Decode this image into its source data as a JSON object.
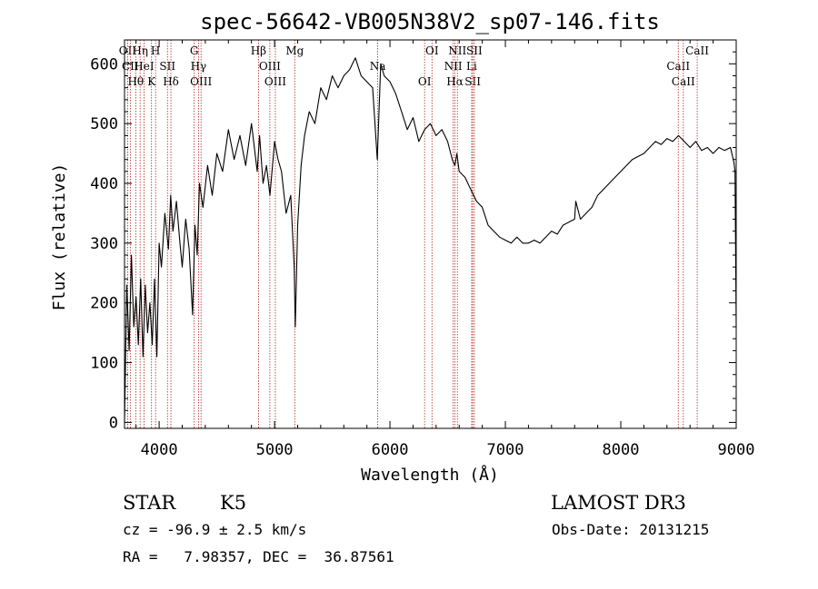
{
  "chart_data": {
    "type": "line",
    "title": "spec-56642-VB005N38V2_sp07-146.fits",
    "xlabel": "Wavelength (Å)",
    "ylabel": "Flux (relative)",
    "xlim": [
      3700,
      9000
    ],
    "ylim": [
      -10,
      640
    ],
    "xticks": [
      4000,
      5000,
      6000,
      7000,
      8000,
      9000
    ],
    "yticks": [
      0,
      100,
      200,
      300,
      400,
      500,
      600
    ],
    "series": [
      {
        "x": [
          3700,
          3720,
          3740,
          3760,
          3780,
          3800,
          3820,
          3840,
          3860,
          3880,
          3900,
          3920,
          3940,
          3960,
          3980,
          4000,
          4020,
          4050,
          4080,
          4100,
          4120,
          4150,
          4180,
          4200,
          4230,
          4260,
          4290,
          4310,
          4330,
          4350,
          4380,
          4420,
          4460,
          4500,
          4550,
          4600,
          4650,
          4700,
          4750,
          4800,
          4850,
          4870,
          4900,
          4930,
          4960,
          5000,
          5030,
          5060,
          5100,
          5140,
          5170,
          5180,
          5200,
          5230,
          5260,
          5300,
          5350,
          5400,
          5450,
          5500,
          5550,
          5600,
          5650,
          5700,
          5750,
          5800,
          5850,
          5890,
          5920,
          5950,
          6000,
          6050,
          6100,
          6150,
          6200,
          6250,
          6300,
          6350,
          6400,
          6450,
          6500,
          6540,
          6563,
          6580,
          6600,
          6650,
          6700,
          6750,
          6800,
          6850,
          6900,
          6950,
          7000,
          7050,
          7100,
          7150,
          7200,
          7250,
          7300,
          7350,
          7400,
          7450,
          7500,
          7550,
          7600,
          7610,
          7650,
          7700,
          7750,
          7800,
          7850,
          7900,
          7950,
          8000,
          8050,
          8100,
          8150,
          8200,
          8250,
          8300,
          8350,
          8400,
          8450,
          8500,
          8550,
          8600,
          8650,
          8700,
          8750,
          8800,
          8850,
          8900,
          8950,
          8980,
          8990,
          9000
        ],
        "y": [
          0,
          230,
          120,
          280,
          160,
          210,
          130,
          240,
          110,
          230,
          150,
          200,
          130,
          240,
          110,
          300,
          260,
          350,
          290,
          380,
          320,
          370,
          300,
          260,
          340,
          290,
          180,
          330,
          280,
          400,
          360,
          430,
          380,
          450,
          420,
          490,
          440,
          480,
          430,
          500,
          420,
          480,
          400,
          430,
          380,
          470,
          440,
          420,
          350,
          380,
          260,
          160,
          330,
          430,
          480,
          520,
          500,
          560,
          540,
          580,
          560,
          580,
          590,
          610,
          580,
          570,
          560,
          440,
          600,
          580,
          570,
          550,
          520,
          490,
          510,
          470,
          490,
          500,
          480,
          490,
          470,
          440,
          430,
          450,
          420,
          410,
          390,
          370,
          360,
          330,
          320,
          310,
          305,
          300,
          310,
          300,
          300,
          305,
          300,
          310,
          320,
          315,
          330,
          335,
          340,
          370,
          340,
          350,
          360,
          380,
          390,
          400,
          410,
          420,
          430,
          440,
          445,
          450,
          460,
          470,
          465,
          475,
          470,
          480,
          470,
          460,
          470,
          455,
          460,
          450,
          460,
          455,
          460,
          435,
          420,
          160
        ]
      }
    ],
    "emission_lines": [
      {
        "wl": 3727,
        "label": "OII"
      },
      {
        "wl": 3750,
        "label": "CII"
      },
      {
        "wl": 3797,
        "label": "Hθ"
      },
      {
        "wl": 3835,
        "label": "Hη"
      },
      {
        "wl": 3869,
        "label": "HeI"
      },
      {
        "wl": 3934,
        "label": "K"
      },
      {
        "wl": 3969,
        "label": "H"
      },
      {
        "wl": 4072,
        "label": "SII"
      },
      {
        "wl": 4102,
        "label": "Hδ"
      },
      {
        "wl": 4304,
        "label": "G"
      },
      {
        "wl": 4341,
        "label": "Hγ"
      },
      {
        "wl": 4363,
        "label": "OIII"
      },
      {
        "wl": 4861,
        "label": "Hβ"
      },
      {
        "wl": 4959,
        "label": "OIII"
      },
      {
        "wl": 5007,
        "label": "OIII"
      },
      {
        "wl": 5175,
        "label": "Mg"
      },
      {
        "wl": 5894,
        "label": "Na"
      },
      {
        "wl": 6300,
        "label": "OI"
      },
      {
        "wl": 6364,
        "label": "OI"
      },
      {
        "wl": 6548,
        "label": "NII"
      },
      {
        "wl": 6563,
        "label": "Hα"
      },
      {
        "wl": 6584,
        "label": "NII"
      },
      {
        "wl": 6708,
        "label": "Li"
      },
      {
        "wl": 6717,
        "label": "SII"
      },
      {
        "wl": 6731,
        "label": "SII"
      },
      {
        "wl": 8498,
        "label": "CaII"
      },
      {
        "wl": 8542,
        "label": "CaII"
      },
      {
        "wl": 8662,
        "label": "CaII"
      }
    ]
  },
  "info": {
    "object_class": "STAR",
    "subclass": "K5",
    "survey": "LAMOST DR3",
    "cz": "cz = -96.9 ± 2.5 km/s",
    "obs_date": "Obs-Date: 20131215",
    "radec": "RA =   7.98357, DEC =  36.87561"
  }
}
